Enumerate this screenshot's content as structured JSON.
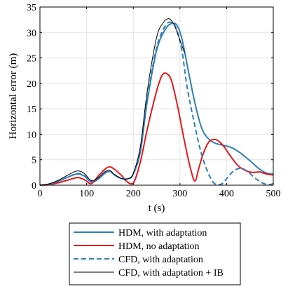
{
  "chart_data": {
    "type": "line",
    "xlabel": "t (s)",
    "ylabel": "Horizontal error (m)",
    "xlim": [
      0,
      500
    ],
    "ylim": [
      0,
      35
    ],
    "xticks": [
      0,
      100,
      200,
      300,
      400,
      500
    ],
    "yticks": [
      0,
      5,
      10,
      15,
      20,
      25,
      30,
      35
    ],
    "grid": true,
    "legend_position": "bottom",
    "series": [
      {
        "name": "HDM, with adaptation",
        "color": "#2E7FB6",
        "style": "solid",
        "x": [
          0,
          20,
          40,
          60,
          80,
          95,
          110,
          125,
          140,
          150,
          160,
          175,
          190,
          200,
          215,
          230,
          250,
          270,
          285,
          295,
          305,
          320,
          335,
          350,
          370,
          390,
          410,
          430,
          450,
          470,
          485,
          500
        ],
        "y": [
          0,
          0.2,
          0.8,
          1.6,
          2.2,
          1.8,
          0.6,
          1.2,
          2.4,
          2.7,
          2.0,
          1.3,
          1.3,
          2.2,
          6.5,
          16.5,
          26.5,
          30.8,
          31.8,
          31.2,
          28.5,
          21.5,
          15.0,
          10.5,
          8.5,
          7.9,
          7.4,
          6.3,
          4.8,
          3.2,
          2.4,
          2.2
        ]
      },
      {
        "name": "HDM, no adaptation",
        "color": "#E41A1C",
        "style": "solid",
        "x": [
          0,
          20,
          40,
          60,
          80,
          95,
          110,
          125,
          140,
          150,
          160,
          175,
          185,
          200,
          215,
          230,
          250,
          262,
          272,
          282,
          295,
          310,
          322,
          332,
          340,
          350,
          362,
          375,
          385,
          395,
          410,
          425,
          440,
          455,
          470,
          485,
          500
        ],
        "y": [
          0,
          0.1,
          0.5,
          1.0,
          1.5,
          1.1,
          0.3,
          1.8,
          3.2,
          3.6,
          3.1,
          1.9,
          0.8,
          0.4,
          4.5,
          11.0,
          18.5,
          21.6,
          21.9,
          20.5,
          15.5,
          8.5,
          3.5,
          0.8,
          3.2,
          6.2,
          8.5,
          9.0,
          8.5,
          7.5,
          5.5,
          3.8,
          2.9,
          2.5,
          2.6,
          2.2,
          2.0
        ]
      },
      {
        "name": "CFD, with adaptation",
        "color": "#2E7FB6",
        "style": "dashed",
        "x": [
          0,
          20,
          40,
          60,
          80,
          95,
          110,
          125,
          140,
          150,
          160,
          175,
          190,
          200,
          215,
          230,
          250,
          270,
          285,
          295,
          305,
          315,
          330,
          345,
          360,
          372,
          382,
          392,
          402,
          415,
          430,
          445,
          458,
          470,
          480,
          490,
          500
        ],
        "y": [
          0,
          0.2,
          0.8,
          1.6,
          2.3,
          1.9,
          0.7,
          1.3,
          2.5,
          2.8,
          2.0,
          1.3,
          1.3,
          2.2,
          6.5,
          17.0,
          27.0,
          31.5,
          31.8,
          30.0,
          26.0,
          19.5,
          12.5,
          6.5,
          2.5,
          0.5,
          0.1,
          0.4,
          1.5,
          2.8,
          3.3,
          2.7,
          1.6,
          0.8,
          0.3,
          0.1,
          0.3
        ]
      },
      {
        "name": "CFD, with adaptation + IB",
        "color": "#000000",
        "style": "solid",
        "thin": true,
        "x": [
          0,
          20,
          40,
          60,
          80,
          95,
          110,
          125,
          140,
          150,
          160,
          175,
          190,
          200,
          215,
          230,
          250,
          265,
          275,
          282,
          290,
          300,
          310
        ],
        "y": [
          0,
          0.3,
          1.0,
          2.0,
          2.8,
          2.3,
          0.9,
          1.5,
          2.7,
          2.9,
          2.1,
          1.3,
          1.3,
          2.3,
          7.5,
          18.5,
          29.0,
          32.0,
          32.7,
          32.3,
          31.0,
          28.5,
          26.0
        ]
      }
    ]
  }
}
